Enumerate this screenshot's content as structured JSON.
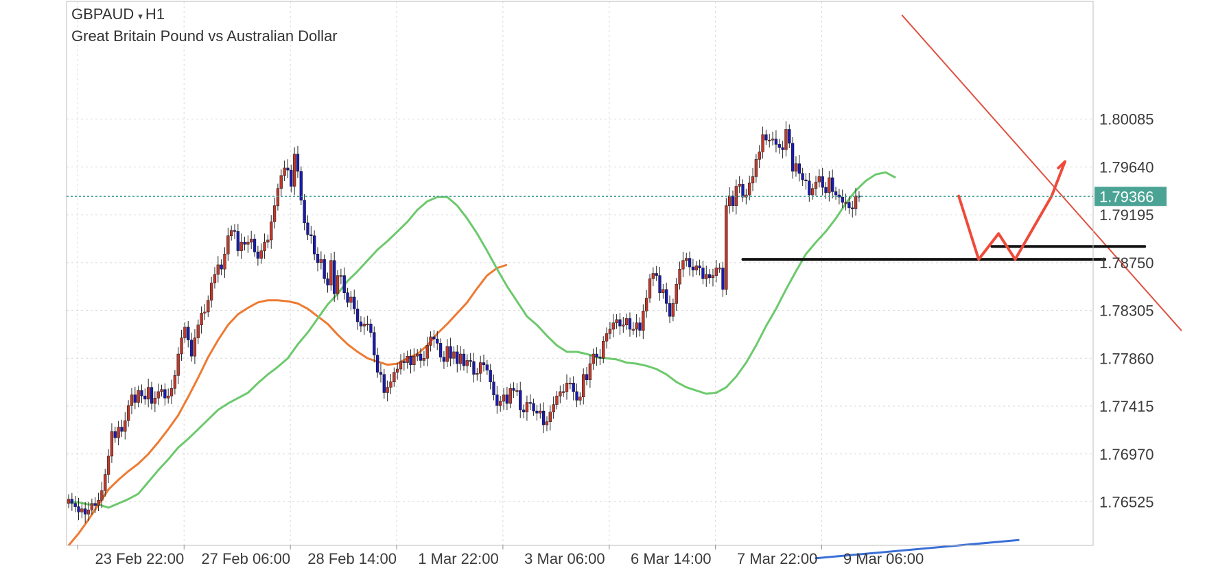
{
  "header": {
    "symbol": "GBPAUD",
    "dropdown_glyph": "▾",
    "timeframe": "H1",
    "description": "Great Britain Pound vs Australian Dollar"
  },
  "colors": {
    "bull_candle": "#c0392b",
    "bear_candle": "#1a1ab0",
    "ma_fast": "#6cc96c",
    "ma_slow": "#ee7a32",
    "trendline": "#e05040",
    "drawn_path": "#ef4a3a",
    "level_line": "#111111",
    "blue_line": "#3a6fd8",
    "price_badge": "#4aa394",
    "grid": "#d9d9d9"
  },
  "chart_data": {
    "type": "candlestick",
    "title": "GBPAUD ▾ H1",
    "subtitle": "Great Britain Pound vs Australian Dollar",
    "ylim": [
      1.7612,
      1.8118
    ],
    "y_ticks": [
      1.80085,
      1.7964,
      1.79195,
      1.7875,
      1.78305,
      1.7786,
      1.77415,
      1.7697,
      1.76525
    ],
    "y_tick_labels": [
      "1.80085",
      "1.79640",
      "1.79195",
      "1.78750",
      "1.78305",
      "1.77860",
      "1.77415",
      "1.76970",
      "1.76525"
    ],
    "x_tick_labels": [
      "23 Feb 22:00",
      "27 Feb 06:00",
      "28 Feb 14:00",
      "1 Mar 22:00",
      "3 Mar 06:00",
      "6 Mar 14:00",
      "7 Mar 22:00",
      "9 Mar 06:00"
    ],
    "x_tick_bar_index": [
      4,
      36,
      68,
      100,
      132,
      164,
      196,
      228
    ],
    "grid": true,
    "current_price": 1.79366,
    "current_price_label": "1.79366",
    "candles_close": [
      1.7655,
      1.7651,
      1.7648,
      1.7643,
      1.7646,
      1.7641,
      1.7645,
      1.7651,
      1.7649,
      1.7654,
      1.7663,
      1.7678,
      1.7695,
      1.7718,
      1.7712,
      1.7722,
      1.7718,
      1.7728,
      1.7742,
      1.7752,
      1.7745,
      1.7756,
      1.7751,
      1.7748,
      1.7759,
      1.7744,
      1.7749,
      1.7755,
      1.7757,
      1.7749,
      1.7751,
      1.7758,
      1.777,
      1.779,
      1.7805,
      1.7815,
      1.7803,
      1.7788,
      1.7805,
      1.7817,
      1.7828,
      1.7829,
      1.784,
      1.7856,
      1.7864,
      1.7873,
      1.7869,
      1.7883,
      1.79,
      1.7905,
      1.7904,
      1.7886,
      1.7894,
      1.7892,
      1.7894,
      1.7897,
      1.7885,
      1.7879,
      1.7886,
      1.7894,
      1.7896,
      1.7913,
      1.7928,
      1.7944,
      1.7956,
      1.7963,
      1.7961,
      1.7946,
      1.7976,
      1.796,
      1.7933,
      1.7912,
      1.7901,
      1.79,
      1.7883,
      1.7875,
      1.7878,
      1.786,
      1.7854,
      1.7877,
      1.7846,
      1.7863,
      1.7863,
      1.7847,
      1.7838,
      1.7843,
      1.7832,
      1.782,
      1.7816,
      1.7818,
      1.7818,
      1.781,
      1.7789,
      1.7773,
      1.7771,
      1.7754,
      1.7759,
      1.7764,
      1.7773,
      1.7776,
      1.7783,
      1.7782,
      1.7788,
      1.778,
      1.7788,
      1.779,
      1.7784,
      1.7786,
      1.7798,
      1.7806,
      1.7804,
      1.78,
      1.7787,
      1.7783,
      1.7797,
      1.7786,
      1.7792,
      1.7781,
      1.779,
      1.7779,
      1.7784,
      1.7783,
      1.7771,
      1.7772,
      1.7782,
      1.778,
      1.7775,
      1.7764,
      1.7752,
      1.7742,
      1.7746,
      1.7752,
      1.7744,
      1.7758,
      1.7756,
      1.7756,
      1.7738,
      1.7736,
      1.7745,
      1.7744,
      1.7737,
      1.7735,
      1.7737,
      1.7724,
      1.7727,
      1.7736,
      1.7743,
      1.7751,
      1.7755,
      1.7755,
      1.7763,
      1.7763,
      1.7755,
      1.7747,
      1.775,
      1.7771,
      1.7766,
      1.7781,
      1.779,
      1.7787,
      1.7786,
      1.7802,
      1.7809,
      1.7813,
      1.7819,
      1.7822,
      1.7816,
      1.7817,
      1.7823,
      1.7813,
      1.7813,
      1.7819,
      1.7812,
      1.783,
      1.7842,
      1.786,
      1.7865,
      1.7863,
      1.7847,
      1.785,
      1.7837,
      1.7825,
      1.7837,
      1.7855,
      1.7869,
      1.7877,
      1.7879,
      1.7871,
      1.7868,
      1.7872,
      1.787,
      1.786,
      1.7864,
      1.7861,
      1.7863,
      1.787,
      1.787,
      1.785,
      1.7928,
      1.7937,
      1.7928,
      1.7946,
      1.7948,
      1.7936,
      1.7938,
      1.7949,
      1.7955,
      1.7971,
      1.7978,
      1.7994,
      1.7989,
      1.7989,
      1.799,
      1.7985,
      1.7982,
      1.798,
      1.7999,
      1.7986,
      1.796,
      1.7967,
      1.7958,
      1.7952,
      1.7951,
      1.7938,
      1.7944,
      1.795,
      1.7955,
      1.7945,
      1.794,
      1.7954,
      1.7941,
      1.7938,
      1.7936,
      1.7931,
      1.7931,
      1.7926,
      1.7925,
      1.7937,
      1.7936
    ],
    "ma_fast": [
      1.7652,
      1.7652,
      1.765,
      1.765,
      1.7647,
      1.7651,
      1.7655,
      1.766,
      1.7671,
      1.7682,
      1.7692,
      1.7703,
      1.7711,
      1.772,
      1.7729,
      1.7738,
      1.7744,
      1.7749,
      1.7754,
      1.7763,
      1.7771,
      1.7778,
      1.7786,
      1.7799,
      1.781,
      1.7823,
      1.7836,
      1.7846,
      1.7858,
      1.7867,
      1.7877,
      1.7887,
      1.7895,
      1.7904,
      1.7913,
      1.7924,
      1.7932,
      1.7936,
      1.7936,
      1.7928,
      1.7916,
      1.7902,
      1.7886,
      1.7869,
      1.7853,
      1.7839,
      1.7825,
      1.7817,
      1.7807,
      1.7798,
      1.7792,
      1.7792,
      1.779,
      1.7787,
      1.7786,
      1.7785,
      1.7782,
      1.7781,
      1.7779,
      1.7776,
      1.7771,
      1.7764,
      1.7759,
      1.7756,
      1.7753,
      1.7754,
      1.7759,
      1.7769,
      1.7782,
      1.7798,
      1.7816,
      1.7832,
      1.785,
      1.7867,
      1.7883,
      1.7894,
      1.7904,
      1.7916,
      1.793,
      1.7942,
      1.7951,
      1.7957,
      1.7959,
      1.7954
    ],
    "ma_slow": [
      1.7612,
      1.7623,
      1.7636,
      1.765,
      1.7664,
      1.7673,
      1.7681,
      1.7688,
      1.7697,
      1.7708,
      1.772,
      1.7733,
      1.775,
      1.7768,
      1.7787,
      1.7803,
      1.7817,
      1.7827,
      1.7833,
      1.7838,
      1.784,
      1.784,
      1.7839,
      1.7837,
      1.7832,
      1.7825,
      1.7818,
      1.7808,
      1.7799,
      1.7792,
      1.7786,
      1.7783,
      1.778,
      1.7781,
      1.7786,
      1.779,
      1.7798,
      1.7809,
      1.7818,
      1.7828,
      1.7838,
      1.7851,
      1.7863,
      1.787,
      1.7873
    ],
    "annotations": {
      "trendline": [
        [
          251,
          1.8105
        ],
        [
          335,
          1.7812
        ]
      ],
      "support_1": [
        [
          203,
          1.7878
        ],
        [
          312,
          1.7878
        ]
      ],
      "support_2": [
        [
          278,
          1.789
        ],
        [
          324,
          1.789
        ]
      ],
      "drawn_projection": [
        [
          268,
          1.7937
        ],
        [
          274,
          1.7878
        ],
        [
          280,
          1.7902
        ],
        [
          285,
          1.7878
        ],
        [
          296,
          1.7937
        ],
        [
          300,
          1.7969
        ],
        [
          298,
          1.7963
        ]
      ],
      "blue_segment": [
        [
          225,
          1.76
        ],
        [
          286,
          1.7617
        ]
      ]
    }
  }
}
